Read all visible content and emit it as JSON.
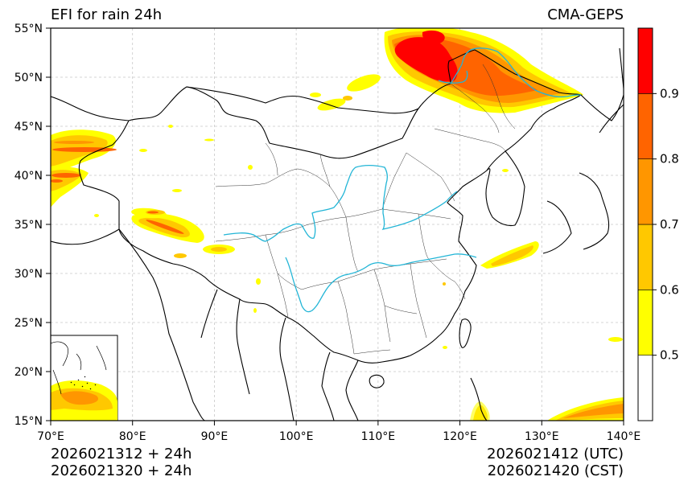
{
  "title_left": "EFI for rain 24h",
  "title_right": "CMA-GEPS",
  "footer": {
    "left_line1": "2026021312 + 24h",
    "left_line2": "2026021320 + 24h",
    "right_line1": "2026021412 (UTC)",
    "right_line2": "2026021420 (CST)"
  },
  "map": {
    "lon_labels": [
      "70°E",
      "80°E",
      "90°E",
      "100°E",
      "110°E",
      "120°E",
      "130°E",
      "140°E"
    ],
    "lat_labels": [
      "15°N",
      "20°N",
      "25°N",
      "30°N",
      "35°N",
      "40°N",
      "45°N",
      "50°N",
      "55°N"
    ],
    "lon_range": [
      70,
      140
    ],
    "lat_range": [
      15,
      55
    ],
    "river_color": "#22b5d6",
    "border_color": "#000000"
  },
  "colorbar": {
    "bins": [
      {
        "from": 0.4,
        "to": 0.5,
        "color": "#ffffff"
      },
      {
        "from": 0.5,
        "to": 0.6,
        "color": "#ffff00"
      },
      {
        "from": 0.6,
        "to": 0.7,
        "color": "#ffc800"
      },
      {
        "from": 0.7,
        "to": 0.8,
        "color": "#ff9600"
      },
      {
        "from": 0.8,
        "to": 0.9,
        "color": "#ff6400"
      },
      {
        "from": 0.9,
        "to": 1.0,
        "color": "#ff0000"
      }
    ],
    "tick_labels": [
      "0.5",
      "0.6",
      "0.7",
      "0.8",
      "0.9"
    ]
  }
}
